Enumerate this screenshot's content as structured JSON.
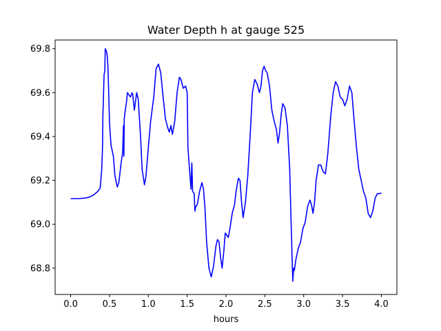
{
  "chart_data": {
    "type": "line",
    "title": "Water Depth h at gauge 525",
    "xlabel": "hours",
    "ylabel": "",
    "xlim": [
      -0.2,
      4.2
    ],
    "ylim": [
      68.68,
      69.84
    ],
    "x_ticks": [
      0.0,
      0.5,
      1.0,
      1.5,
      2.0,
      2.5,
      3.0,
      3.5,
      4.0
    ],
    "x_tick_labels": [
      "0.0",
      "0.5",
      "1.0",
      "1.5",
      "2.0",
      "2.5",
      "3.0",
      "3.5",
      "4.0"
    ],
    "y_ticks": [
      68.8,
      69.0,
      69.2,
      69.4,
      69.6,
      69.8
    ],
    "y_tick_labels": [
      "68.8",
      "69.0",
      "69.2",
      "69.4",
      "69.6",
      "69.8"
    ],
    "grid": false,
    "legend": "none",
    "series": [
      {
        "color": "#0000ff",
        "points": [
          [
            0.0,
            69.117
          ],
          [
            0.1,
            69.117
          ],
          [
            0.2,
            69.12
          ],
          [
            0.25,
            69.125
          ],
          [
            0.3,
            69.135
          ],
          [
            0.35,
            69.15
          ],
          [
            0.38,
            69.165
          ],
          [
            0.4,
            69.25
          ],
          [
            0.41,
            69.35
          ],
          [
            0.415,
            69.5
          ],
          [
            0.42,
            69.55
          ],
          [
            0.43,
            69.68
          ],
          [
            0.44,
            69.7
          ],
          [
            0.445,
            69.8
          ],
          [
            0.46,
            69.79
          ],
          [
            0.47,
            69.77
          ],
          [
            0.48,
            69.72
          ],
          [
            0.49,
            69.6
          ],
          [
            0.5,
            69.46
          ],
          [
            0.52,
            69.36
          ],
          [
            0.55,
            69.31
          ],
          [
            0.57,
            69.22
          ],
          [
            0.6,
            69.17
          ],
          [
            0.62,
            69.19
          ],
          [
            0.65,
            69.28
          ],
          [
            0.67,
            69.33
          ],
          [
            0.68,
            69.45
          ],
          [
            0.685,
            69.31
          ],
          [
            0.69,
            69.48
          ],
          [
            0.7,
            69.51
          ],
          [
            0.72,
            69.56
          ],
          [
            0.73,
            69.6
          ],
          [
            0.75,
            69.59
          ],
          [
            0.77,
            69.58
          ],
          [
            0.79,
            69.6
          ],
          [
            0.8,
            69.59
          ],
          [
            0.82,
            69.52
          ],
          [
            0.85,
            69.6
          ],
          [
            0.87,
            69.57
          ],
          [
            0.9,
            69.4
          ],
          [
            0.92,
            69.25
          ],
          [
            0.95,
            69.18
          ],
          [
            0.97,
            69.22
          ],
          [
            1.0,
            69.35
          ],
          [
            1.03,
            69.47
          ],
          [
            1.07,
            69.58
          ],
          [
            1.1,
            69.71
          ],
          [
            1.13,
            69.73
          ],
          [
            1.16,
            69.69
          ],
          [
            1.19,
            69.58
          ],
          [
            1.22,
            69.48
          ],
          [
            1.25,
            69.44
          ],
          [
            1.27,
            69.42
          ],
          [
            1.29,
            69.45
          ],
          [
            1.31,
            69.41
          ],
          [
            1.34,
            69.47
          ],
          [
            1.37,
            69.6
          ],
          [
            1.4,
            69.67
          ],
          [
            1.42,
            69.66
          ],
          [
            1.45,
            69.62
          ],
          [
            1.48,
            69.63
          ],
          [
            1.5,
            69.6
          ],
          [
            1.51,
            69.35
          ],
          [
            1.53,
            69.25
          ],
          [
            1.55,
            69.16
          ],
          [
            1.56,
            69.28
          ],
          [
            1.57,
            69.15
          ],
          [
            1.59,
            69.14
          ],
          [
            1.6,
            69.06
          ],
          [
            1.61,
            69.08
          ],
          [
            1.63,
            69.09
          ],
          [
            1.66,
            69.15
          ],
          [
            1.69,
            69.19
          ],
          [
            1.71,
            69.16
          ],
          [
            1.73,
            69.07
          ],
          [
            1.75,
            68.92
          ],
          [
            1.78,
            68.8
          ],
          [
            1.81,
            68.76
          ],
          [
            1.84,
            68.81
          ],
          [
            1.87,
            68.9
          ],
          [
            1.89,
            68.93
          ],
          [
            1.91,
            68.92
          ],
          [
            1.93,
            68.85
          ],
          [
            1.95,
            68.8
          ],
          [
            1.97,
            68.87
          ],
          [
            1.99,
            68.96
          ],
          [
            2.01,
            68.95
          ],
          [
            2.03,
            68.94
          ],
          [
            2.05,
            68.98
          ],
          [
            2.08,
            69.05
          ],
          [
            2.11,
            69.09
          ],
          [
            2.13,
            69.15
          ],
          [
            2.16,
            69.21
          ],
          [
            2.18,
            69.2
          ],
          [
            2.2,
            69.1
          ],
          [
            2.22,
            69.03
          ],
          [
            2.25,
            69.1
          ],
          [
            2.28,
            69.22
          ],
          [
            2.31,
            69.4
          ],
          [
            2.34,
            69.6
          ],
          [
            2.37,
            69.66
          ],
          [
            2.4,
            69.64
          ],
          [
            2.43,
            69.6
          ],
          [
            2.45,
            69.63
          ],
          [
            2.47,
            69.7
          ],
          [
            2.49,
            69.72
          ],
          [
            2.51,
            69.7
          ],
          [
            2.53,
            69.69
          ],
          [
            2.56,
            69.63
          ],
          [
            2.59,
            69.52
          ],
          [
            2.62,
            69.47
          ],
          [
            2.65,
            69.43
          ],
          [
            2.67,
            69.37
          ],
          [
            2.69,
            69.42
          ],
          [
            2.71,
            69.5
          ],
          [
            2.73,
            69.55
          ],
          [
            2.76,
            69.53
          ],
          [
            2.79,
            69.45
          ],
          [
            2.82,
            69.25
          ],
          [
            2.84,
            68.98
          ],
          [
            2.845,
            68.93
          ],
          [
            2.85,
            68.85
          ],
          [
            2.86,
            68.74
          ],
          [
            2.87,
            68.8
          ],
          [
            2.88,
            68.79
          ],
          [
            2.9,
            68.84
          ],
          [
            2.93,
            68.89
          ],
          [
            2.96,
            68.92
          ],
          [
            2.99,
            68.98
          ],
          [
            3.02,
            69.01
          ],
          [
            3.05,
            69.08
          ],
          [
            3.08,
            69.11
          ],
          [
            3.1,
            69.09
          ],
          [
            3.12,
            69.05
          ],
          [
            3.14,
            69.1
          ],
          [
            3.16,
            69.2
          ],
          [
            3.19,
            69.27
          ],
          [
            3.22,
            69.27
          ],
          [
            3.25,
            69.24
          ],
          [
            3.28,
            69.23
          ],
          [
            3.31,
            69.32
          ],
          [
            3.35,
            69.5
          ],
          [
            3.38,
            69.6
          ],
          [
            3.41,
            69.65
          ],
          [
            3.44,
            69.63
          ],
          [
            3.47,
            69.58
          ],
          [
            3.5,
            69.57
          ],
          [
            3.53,
            69.54
          ],
          [
            3.56,
            69.57
          ],
          [
            3.59,
            69.63
          ],
          [
            3.62,
            69.6
          ],
          [
            3.65,
            69.47
          ],
          [
            3.68,
            69.35
          ],
          [
            3.71,
            69.25
          ],
          [
            3.74,
            69.2
          ],
          [
            3.77,
            69.15
          ],
          [
            3.8,
            69.12
          ],
          [
            3.83,
            69.05
          ],
          [
            3.86,
            69.03
          ],
          [
            3.89,
            69.06
          ],
          [
            3.92,
            69.12
          ],
          [
            3.95,
            69.14
          ],
          [
            3.98,
            69.14
          ],
          [
            4.0,
            69.143
          ]
        ]
      }
    ]
  }
}
